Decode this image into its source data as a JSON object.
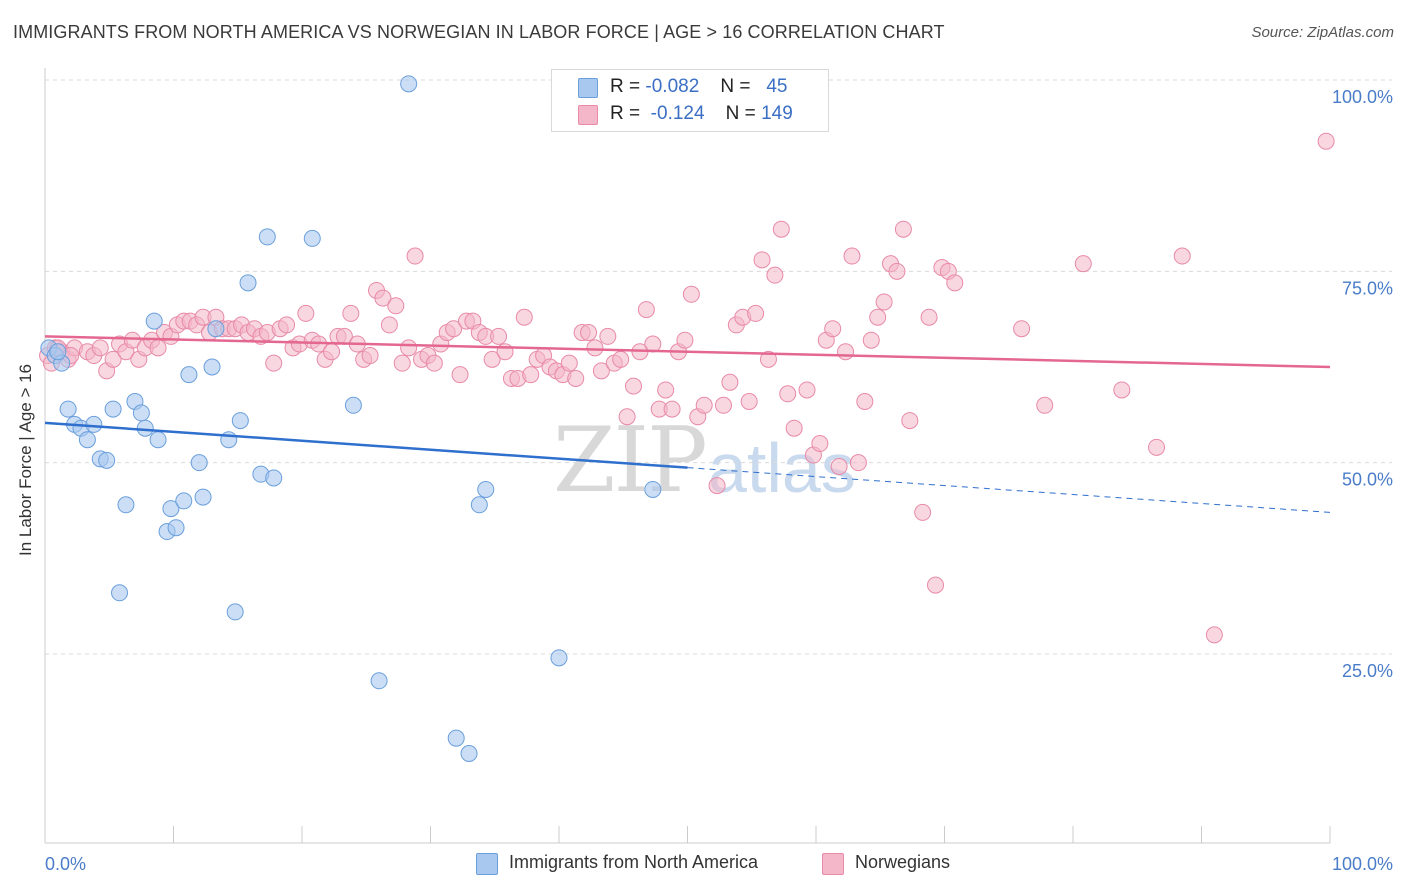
{
  "title": "IMMIGRANTS FROM NORTH AMERICA VS NORWEGIAN IN LABOR FORCE | AGE > 16 CORRELATION CHART",
  "source": "Source: ZipAtlas.com",
  "watermark": {
    "zip": "ZIP",
    "atlas": "atlas"
  },
  "legend": {
    "rows": [
      {
        "r_label": "R =",
        "r_value": "-0.082",
        "n_label": "N =",
        "n_value": "45"
      },
      {
        "r_label": "R =",
        "r_value": "-0.124",
        "n_label": "N =",
        "n_value": "149"
      }
    ]
  },
  "colors": {
    "blue_fill": "#a8c8ef",
    "blue_stroke": "#6a9fdc",
    "blue_line": "#2f6fcd",
    "pink_fill": "#f4b6c9",
    "pink_stroke": "#e88aa8",
    "pink_line": "#e36791",
    "tick": "#4a7cc9"
  },
  "chart_data": {
    "type": "scatter",
    "title": "IMMIGRANTS FROM NORTH AMERICA VS NORWEGIAN IN LABOR FORCE | AGE > 16 CORRELATION CHART",
    "ylabel": "In Labor Force | Age > 16",
    "xlabel": "",
    "xlim": [
      0,
      100
    ],
    "ylim": [
      0,
      105
    ],
    "x_tick_labels": [
      "0.0%",
      "100.0%"
    ],
    "y_ticks": [
      25,
      50,
      75,
      100
    ],
    "y_tick_labels": [
      "25.0%",
      "50.0%",
      "75.0%",
      "100.0%"
    ],
    "grid": "horizontal dashed",
    "legend_position": "top-center",
    "series": [
      {
        "name": "Immigrants from North America",
        "color": "#a8c8ef",
        "points": [
          [
            0.3,
            65.0
          ],
          [
            0.8,
            64.0
          ],
          [
            1.3,
            63.0
          ],
          [
            1.8,
            57.0
          ],
          [
            2.3,
            55.0
          ],
          [
            2.8,
            54.5
          ],
          [
            3.3,
            53.0
          ],
          [
            3.8,
            55.0
          ],
          [
            4.3,
            50.5
          ],
          [
            4.8,
            50.3
          ],
          [
            5.3,
            57.0
          ],
          [
            6.3,
            44.5
          ],
          [
            5.8,
            33.0
          ],
          [
            7.0,
            58.0
          ],
          [
            7.5,
            56.5
          ],
          [
            7.8,
            54.5
          ],
          [
            8.5,
            68.5
          ],
          [
            8.8,
            53.0
          ],
          [
            9.5,
            41.0
          ],
          [
            9.8,
            44.0
          ],
          [
            10.2,
            41.5
          ],
          [
            10.8,
            45.0
          ],
          [
            11.2,
            61.5
          ],
          [
            12.0,
            50.0
          ],
          [
            12.3,
            45.5
          ],
          [
            13.0,
            62.5
          ],
          [
            13.3,
            67.5
          ],
          [
            14.3,
            53.0
          ],
          [
            14.8,
            30.5
          ],
          [
            15.2,
            55.5
          ],
          [
            15.8,
            73.5
          ],
          [
            16.8,
            48.5
          ],
          [
            17.3,
            79.5
          ],
          [
            17.8,
            48.0
          ],
          [
            20.8,
            79.3
          ],
          [
            24.0,
            57.5
          ],
          [
            26.0,
            21.5
          ],
          [
            28.3,
            99.5
          ],
          [
            32.0,
            14.0
          ],
          [
            33.0,
            12.0
          ],
          [
            33.8,
            44.5
          ],
          [
            34.3,
            46.5
          ],
          [
            40.0,
            24.5
          ],
          [
            47.3,
            46.5
          ],
          [
            1.0,
            64.5
          ]
        ],
        "trend": {
          "x": [
            0,
            100
          ],
          "y": [
            55.2,
            43.5
          ],
          "solid_until_x": 50
        }
      },
      {
        "name": "Norwegians",
        "color": "#f4b6c9",
        "points": [
          [
            0.2,
            64.0
          ],
          [
            0.8,
            65.0
          ],
          [
            1.3,
            64.5
          ],
          [
            1.8,
            63.5
          ],
          [
            2.3,
            65.0
          ],
          [
            3.3,
            64.5
          ],
          [
            3.8,
            64.0
          ],
          [
            4.3,
            65.0
          ],
          [
            4.8,
            62.0
          ],
          [
            5.3,
            63.5
          ],
          [
            5.8,
            65.5
          ],
          [
            6.3,
            64.5
          ],
          [
            6.8,
            66.0
          ],
          [
            7.3,
            63.5
          ],
          [
            7.8,
            65.0
          ],
          [
            8.3,
            66.0
          ],
          [
            8.8,
            65.0
          ],
          [
            9.3,
            67.0
          ],
          [
            9.8,
            66.5
          ],
          [
            10.3,
            68.0
          ],
          [
            10.8,
            68.5
          ],
          [
            11.3,
            68.5
          ],
          [
            11.8,
            68.0
          ],
          [
            12.3,
            69.0
          ],
          [
            12.8,
            67.0
          ],
          [
            13.3,
            69.0
          ],
          [
            13.8,
            67.5
          ],
          [
            14.3,
            67.5
          ],
          [
            14.8,
            67.5
          ],
          [
            15.3,
            68.0
          ],
          [
            15.8,
            67.0
          ],
          [
            16.3,
            67.5
          ],
          [
            16.8,
            66.5
          ],
          [
            17.3,
            67.0
          ],
          [
            17.8,
            63.0
          ],
          [
            18.3,
            67.5
          ],
          [
            18.8,
            68.0
          ],
          [
            19.3,
            65.0
          ],
          [
            19.8,
            65.5
          ],
          [
            20.3,
            69.5
          ],
          [
            20.8,
            66.0
          ],
          [
            21.3,
            65.5
          ],
          [
            21.8,
            63.5
          ],
          [
            22.3,
            64.5
          ],
          [
            22.8,
            66.5
          ],
          [
            23.3,
            66.5
          ],
          [
            23.8,
            69.5
          ],
          [
            24.3,
            65.5
          ],
          [
            24.8,
            63.5
          ],
          [
            25.3,
            64.0
          ],
          [
            25.8,
            72.5
          ],
          [
            26.3,
            71.5
          ],
          [
            26.8,
            68.0
          ],
          [
            27.3,
            70.5
          ],
          [
            27.8,
            63.0
          ],
          [
            28.3,
            65.0
          ],
          [
            28.8,
            77.0
          ],
          [
            29.3,
            63.5
          ],
          [
            29.8,
            64.0
          ],
          [
            30.3,
            63.0
          ],
          [
            30.8,
            65.5
          ],
          [
            31.3,
            67.0
          ],
          [
            31.8,
            67.5
          ],
          [
            32.3,
            61.5
          ],
          [
            32.8,
            68.5
          ],
          [
            33.3,
            68.5
          ],
          [
            33.8,
            67.0
          ],
          [
            34.3,
            66.5
          ],
          [
            34.8,
            63.5
          ],
          [
            35.3,
            66.5
          ],
          [
            35.8,
            64.5
          ],
          [
            36.3,
            61.0
          ],
          [
            36.8,
            61.0
          ],
          [
            37.3,
            69.0
          ],
          [
            37.8,
            61.5
          ],
          [
            38.3,
            63.5
          ],
          [
            38.8,
            64.0
          ],
          [
            39.3,
            62.5
          ],
          [
            39.8,
            62.0
          ],
          [
            40.3,
            61.5
          ],
          [
            40.8,
            63.0
          ],
          [
            41.3,
            61.0
          ],
          [
            41.8,
            67.0
          ],
          [
            42.3,
            67.0
          ],
          [
            42.8,
            65.0
          ],
          [
            43.3,
            62.0
          ],
          [
            43.8,
            66.5
          ],
          [
            44.3,
            63.0
          ],
          [
            44.8,
            63.5
          ],
          [
            45.3,
            56.0
          ],
          [
            45.8,
            60.0
          ],
          [
            46.3,
            64.5
          ],
          [
            46.8,
            70.0
          ],
          [
            47.3,
            65.5
          ],
          [
            47.8,
            57.0
          ],
          [
            48.3,
            59.5
          ],
          [
            48.8,
            57.0
          ],
          [
            49.3,
            64.5
          ],
          [
            49.8,
            66.0
          ],
          [
            50.3,
            72.0
          ],
          [
            50.8,
            56.0
          ],
          [
            51.3,
            57.5
          ],
          [
            52.3,
            47.0
          ],
          [
            52.8,
            57.5
          ],
          [
            53.3,
            60.5
          ],
          [
            53.8,
            68.0
          ],
          [
            54.3,
            69.0
          ],
          [
            54.8,
            58.0
          ],
          [
            55.3,
            69.5
          ],
          [
            55.8,
            76.5
          ],
          [
            56.3,
            63.5
          ],
          [
            56.8,
            74.5
          ],
          [
            57.3,
            80.5
          ],
          [
            57.8,
            59.0
          ],
          [
            58.3,
            54.5
          ],
          [
            59.3,
            59.5
          ],
          [
            59.8,
            51.0
          ],
          [
            60.3,
            52.5
          ],
          [
            60.8,
            66.0
          ],
          [
            61.3,
            67.5
          ],
          [
            61.8,
            49.5
          ],
          [
            62.3,
            64.5
          ],
          [
            62.8,
            77.0
          ],
          [
            63.3,
            50.0
          ],
          [
            63.8,
            58.0
          ],
          [
            64.3,
            66.0
          ],
          [
            64.8,
            69.0
          ],
          [
            65.3,
            71.0
          ],
          [
            65.8,
            76.0
          ],
          [
            66.3,
            75.0
          ],
          [
            66.8,
            80.5
          ],
          [
            67.3,
            55.5
          ],
          [
            68.3,
            43.5
          ],
          [
            68.8,
            69.0
          ],
          [
            69.3,
            34.0
          ],
          [
            69.8,
            75.5
          ],
          [
            70.3,
            75.0
          ],
          [
            70.8,
            73.5
          ],
          [
            76.0,
            67.5
          ],
          [
            77.8,
            57.5
          ],
          [
            80.8,
            76.0
          ],
          [
            83.8,
            59.5
          ],
          [
            86.5,
            52.0
          ],
          [
            88.5,
            77.0
          ],
          [
            91.0,
            27.5
          ],
          [
            99.7,
            92.0
          ],
          [
            1.0,
            65.0
          ],
          [
            2.0,
            64.0
          ],
          [
            0.5,
            63.0
          ]
        ],
        "trend": {
          "x": [
            0,
            100
          ],
          "y": [
            66.5,
            62.5
          ]
        }
      }
    ]
  },
  "bottom_legend": [
    {
      "label": "Immigrants from North America"
    },
    {
      "label": "Norwegians"
    }
  ]
}
